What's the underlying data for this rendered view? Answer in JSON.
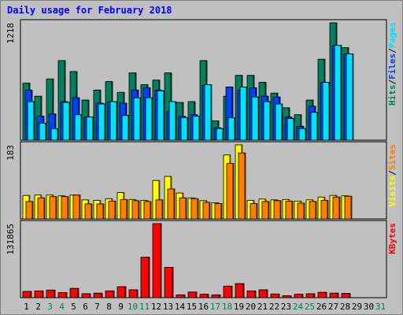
{
  "title": "Daily usage for February 2018",
  "colors": {
    "background": "#c0c0c0",
    "pages": "#00e0ff",
    "files": "#0040ff",
    "hits": "#00805c",
    "visits": "#ffff00",
    "sites": "#ff8000",
    "kbytes": "#ff0000",
    "title": "#0000ff",
    "weekend_label": "#00805c"
  },
  "chart_data": [
    {
      "type": "bar",
      "panel": "hits-files-pages",
      "ymax_label": "1218",
      "ylim": [
        0,
        1218
      ],
      "legend": [
        "Pages",
        "Files",
        "Hits"
      ],
      "separator": "/",
      "categories": [
        "1",
        "2",
        "3",
        "4",
        "5",
        "6",
        "7",
        "8",
        "9",
        "10",
        "11",
        "12",
        "13",
        "14",
        "15",
        "16",
        "17",
        "18",
        "19",
        "20",
        "21",
        "22",
        "23",
        "24",
        "25",
        "26",
        "27",
        "28",
        "29",
        "30",
        "31"
      ],
      "series": [
        {
          "name": "Hits",
          "values": [
            592,
            456,
            635,
            826,
            712,
            416,
            520,
            608,
            496,
            698,
            576,
            624,
            698,
            391,
            400,
            826,
            200,
            456,
            672,
            672,
            600,
            488,
            336,
            264,
            416,
            840,
            1218,
            960,
            0,
            0,
            0
          ]
        },
        {
          "name": "Files",
          "values": [
            520,
            248,
            272,
            400,
            440,
            240,
            384,
            400,
            384,
            520,
            544,
            520,
            296,
            248,
            264,
            568,
            128,
            552,
            520,
            544,
            456,
            448,
            240,
            144,
            352,
            600,
            984,
            896,
            0,
            0,
            0
          ]
        },
        {
          "name": "Pages",
          "values": [
            400,
            176,
            120,
            392,
            264,
            240,
            376,
            400,
            256,
            440,
            440,
            512,
            400,
            232,
            248,
            576,
            120,
            232,
            552,
            448,
            400,
            376,
            224,
            120,
            288,
            600,
            984,
            896,
            0,
            0,
            0
          ]
        }
      ]
    },
    {
      "type": "bar",
      "panel": "visits-sites",
      "ymax_label": "183",
      "ylim": [
        0,
        183
      ],
      "legend": [
        "Sites",
        "Visits"
      ],
      "separator": "/",
      "categories": [
        "1",
        "2",
        "3",
        "4",
        "5",
        "6",
        "7",
        "8",
        "9",
        "10",
        "11",
        "12",
        "13",
        "14",
        "15",
        "16",
        "17",
        "18",
        "19",
        "20",
        "21",
        "22",
        "23",
        "24",
        "25",
        "26",
        "27",
        "28",
        "29",
        "30",
        "31"
      ],
      "series": [
        {
          "name": "Visits",
          "values": [
            58,
            59,
            59,
            57,
            59,
            47,
            46,
            50,
            65,
            48,
            46,
            95,
            105,
            64,
            52,
            45,
            40,
            158,
            183,
            46,
            49,
            47,
            48,
            44,
            47,
            54,
            58,
            57,
            0,
            0,
            0
          ]
        },
        {
          "name": "Sites",
          "values": [
            43,
            52,
            55,
            55,
            59,
            37,
            37,
            44,
            48,
            45,
            43,
            47,
            74,
            52,
            50,
            41,
            38,
            137,
            163,
            38,
            43,
            45,
            44,
            39,
            43,
            46,
            54,
            56,
            0,
            0,
            0
          ]
        }
      ]
    },
    {
      "type": "bar",
      "panel": "kbytes",
      "ymax_label": "131865",
      "ylim": [
        0,
        131865
      ],
      "legend": [
        "KBytes"
      ],
      "categories": [
        "1",
        "2",
        "3",
        "4",
        "5",
        "6",
        "7",
        "8",
        "9",
        "10",
        "11",
        "12",
        "13",
        "14",
        "15",
        "16",
        "17",
        "18",
        "19",
        "20",
        "21",
        "22",
        "23",
        "24",
        "25",
        "26",
        "27",
        "28",
        "29",
        "30",
        "31"
      ],
      "series": [
        {
          "name": "KBytes",
          "values": [
            11000,
            12000,
            13500,
            9000,
            16500,
            7000,
            8000,
            12000,
            19500,
            14000,
            72000,
            131865,
            54000,
            5000,
            10000,
            6000,
            5000,
            20500,
            25000,
            12000,
            14000,
            6500,
            3500,
            6000,
            7000,
            9500,
            8000,
            7500,
            0,
            0,
            0
          ]
        }
      ]
    }
  ],
  "x_labels": [
    "1",
    "2",
    "3",
    "4",
    "5",
    "6",
    "7",
    "8",
    "9",
    "10",
    "11",
    "12",
    "13",
    "14",
    "15",
    "16",
    "17",
    "18",
    "19",
    "20",
    "21",
    "22",
    "23",
    "24",
    "25",
    "26",
    "27",
    "28",
    "29",
    "30",
    "31"
  ],
  "weekend_days": [
    3,
    4,
    10,
    11,
    17,
    18,
    24,
    25,
    31
  ]
}
